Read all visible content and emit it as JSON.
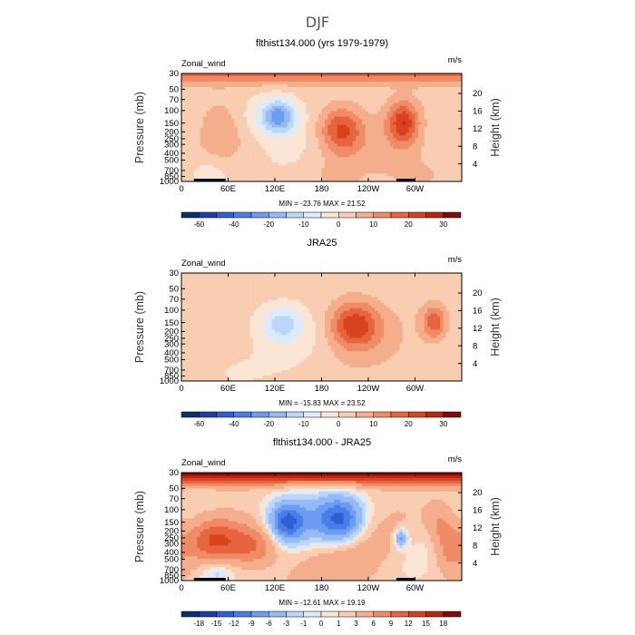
{
  "figure_title": "DJF",
  "colors": {
    "diverging": [
      "#08306b",
      "#1c3fa6",
      "#2f5fd6",
      "#4a7ee6",
      "#6c9cf0",
      "#94bbf6",
      "#bcd6fa",
      "#dcebfd",
      "#fbe6d6",
      "#f8cdb1",
      "#f4ae8c",
      "#ef8b66",
      "#e6653f",
      "#d8431f",
      "#b82612",
      "#7f0d05"
    ]
  },
  "chart_data": [
    {
      "type": "heatmap",
      "title": "flthist134.000 (yrs 1979-1979)",
      "field_label": "Zonal_wind",
      "units_label": "m/s",
      "ylabel": "Pressure (mb)",
      "y2label": "Height (km)",
      "x_ticks": [
        "0",
        "60E",
        "120E",
        "180",
        "120W",
        "60W"
      ],
      "x_tick_lons": [
        0,
        60,
        120,
        180,
        240,
        300
      ],
      "xlim": [
        0,
        360
      ],
      "p_ticks": [
        "30",
        "50",
        "70",
        "100",
        "150",
        "200",
        "250",
        "300",
        "400",
        "500",
        "700",
        "850",
        "1000"
      ],
      "p_values": [
        30,
        50,
        70,
        100,
        150,
        200,
        250,
        300,
        400,
        500,
        700,
        850,
        1000
      ],
      "z_ticks": [
        "4",
        "8",
        "12",
        "16",
        "20"
      ],
      "z_values": [
        4,
        8,
        12,
        16,
        20
      ],
      "stats": "MIN = -23.76  MAX =  21.52",
      "min": -23.76,
      "max": 21.52,
      "colorbar_labels": [
        "-60",
        "-40",
        "-20",
        "-10",
        "0",
        "10",
        "20",
        "30"
      ],
      "colorbar_label_positions": [
        1,
        3,
        5,
        7,
        9,
        11,
        13,
        15
      ],
      "colorbar_levels": [
        -70,
        -60,
        -50,
        -40,
        -30,
        -20,
        -15,
        -10,
        -5,
        0,
        5,
        10,
        15,
        20,
        25,
        30,
        35
      ],
      "base": {
        "strato": 9,
        "background": 2
      },
      "blobs": [
        {
          "lon": 125,
          "p": 120,
          "slon": 22,
          "sp": 0.55,
          "amp": -22
        },
        {
          "lon": 100,
          "p": 140,
          "slon": 45,
          "sp": 0.8,
          "amp": -6
        },
        {
          "lon": 205,
          "p": 190,
          "slon": 28,
          "sp": 0.75,
          "amp": 20
        },
        {
          "lon": 285,
          "p": 150,
          "slon": 20,
          "sp": 0.7,
          "amp": 21
        },
        {
          "lon": 50,
          "p": 170,
          "slon": 30,
          "sp": 1.0,
          "amp": 7
        },
        {
          "lon": 300,
          "p": 600,
          "slon": 60,
          "sp": 1.1,
          "amp": 5
        },
        {
          "lon": 35,
          "p": 750,
          "slon": 30,
          "sp": 0.6,
          "amp": -6
        },
        {
          "lon": 200,
          "p": 850,
          "slon": 25,
          "sp": 0.5,
          "amp": 4
        }
      ],
      "strato_amp": 14,
      "topography": true
    },
    {
      "type": "heatmap",
      "title": "JRA25",
      "field_label": "Zonal_wind",
      "units_label": "m/s",
      "ylabel": "Pressure (mb)",
      "y2label": "Height (km)",
      "x_ticks": [
        "0",
        "60E",
        "120E",
        "180",
        "120W",
        "60W"
      ],
      "x_tick_lons": [
        0,
        60,
        120,
        180,
        240,
        300
      ],
      "xlim": [
        0,
        360
      ],
      "p_ticks": [
        "30",
        "50",
        "70",
        "100",
        "150",
        "200",
        "250",
        "300",
        "400",
        "500",
        "700",
        "850",
        "1000"
      ],
      "p_values": [
        30,
        50,
        70,
        100,
        150,
        200,
        250,
        300,
        400,
        500,
        700,
        850,
        1000
      ],
      "z_ticks": [
        "4",
        "8",
        "12",
        "16",
        "20"
      ],
      "z_values": [
        4,
        8,
        12,
        16,
        20
      ],
      "stats": "MIN = -15.83  MAX =  23.52",
      "min": -15.83,
      "max": 23.52,
      "colorbar_labels": [
        "-60",
        "-40",
        "-20",
        "-10",
        "0",
        "10",
        "20",
        "30"
      ],
      "colorbar_label_positions": [
        1,
        3,
        5,
        7,
        9,
        11,
        13,
        15
      ],
      "colorbar_levels": [
        -70,
        -60,
        -50,
        -40,
        -30,
        -20,
        -15,
        -10,
        -5,
        0,
        5,
        10,
        15,
        20,
        25,
        30,
        35
      ],
      "base": {
        "strato": 2,
        "background": 2
      },
      "blobs": [
        {
          "lon": 130,
          "p": 150,
          "slon": 25,
          "sp": 0.55,
          "amp": -12
        },
        {
          "lon": 110,
          "p": 200,
          "slon": 50,
          "sp": 0.9,
          "amp": -4
        },
        {
          "lon": 222,
          "p": 160,
          "slon": 32,
          "sp": 0.75,
          "amp": 22
        },
        {
          "lon": 325,
          "p": 150,
          "slon": 16,
          "sp": 0.55,
          "amp": 17
        },
        {
          "lon": 300,
          "p": 500,
          "slon": 60,
          "sp": 1.2,
          "amp": 3
        },
        {
          "lon": 60,
          "p": 700,
          "slon": 40,
          "sp": 0.6,
          "amp": -3
        }
      ],
      "strato_amp": 1,
      "topography": false
    },
    {
      "type": "heatmap",
      "title": "flthist134.000 - JRA25",
      "field_label": "Zonal_wind",
      "units_label": "m/s",
      "ylabel": "Pressure (mb)",
      "y2label": "Height (km)",
      "x_ticks": [
        "0",
        "60E",
        "120E",
        "180",
        "120W",
        "60W"
      ],
      "x_tick_lons": [
        0,
        60,
        120,
        180,
        240,
        300
      ],
      "xlim": [
        0,
        360
      ],
      "p_ticks": [
        "30",
        "50",
        "70",
        "100",
        "150",
        "200",
        "250",
        "300",
        "400",
        "500",
        "700",
        "850",
        "1000"
      ],
      "p_values": [
        30,
        50,
        70,
        100,
        150,
        200,
        250,
        300,
        400,
        500,
        700,
        850,
        1000
      ],
      "z_ticks": [
        "4",
        "8",
        "12",
        "16",
        "20"
      ],
      "z_values": [
        4,
        8,
        12,
        16,
        20
      ],
      "stats": "MIN = -12.61  MAX =  19.19",
      "min": -12.61,
      "max": 19.19,
      "colorbar_labels": [
        "-18",
        "-15",
        "-12",
        "-9",
        "-6",
        "-3",
        "-1",
        "0",
        "1",
        "3",
        "6",
        "9",
        "12",
        "15",
        "18"
      ],
      "colorbar_label_positions": [
        1,
        2,
        3,
        4,
        5,
        6,
        7,
        8,
        9,
        10,
        11,
        12,
        13,
        14,
        15
      ],
      "colorbar_levels": [
        -21,
        -18,
        -15,
        -12,
        -9,
        -6,
        -3,
        -1,
        0,
        1,
        3,
        6,
        9,
        12,
        15,
        18,
        21
      ],
      "base": {
        "strato": 14,
        "background": 2
      },
      "blobs": [
        {
          "lon": 135,
          "p": 150,
          "slon": 22,
          "sp": 0.6,
          "amp": -12
        },
        {
          "lon": 205,
          "p": 140,
          "slon": 28,
          "sp": 0.7,
          "amp": -11
        },
        {
          "lon": 165,
          "p": 120,
          "slon": 60,
          "sp": 0.9,
          "amp": -5
        },
        {
          "lon": 282,
          "p": 250,
          "slon": 8,
          "sp": 0.3,
          "amp": -9
        },
        {
          "lon": 40,
          "p": 260,
          "slon": 35,
          "sp": 0.7,
          "amp": 9
        },
        {
          "lon": 95,
          "p": 330,
          "slon": 30,
          "sp": 0.6,
          "amp": 6
        },
        {
          "lon": 345,
          "p": 330,
          "slon": 22,
          "sp": 0.8,
          "amp": 7
        },
        {
          "lon": 330,
          "p": 150,
          "slon": 18,
          "sp": 0.6,
          "amp": 4
        },
        {
          "lon": 170,
          "p": 600,
          "slon": 60,
          "sp": 1.0,
          "amp": 3
        },
        {
          "lon": 45,
          "p": 750,
          "slon": 25,
          "sp": 0.5,
          "amp": -5
        }
      ],
      "strato_amp": 17,
      "topography": true
    }
  ]
}
